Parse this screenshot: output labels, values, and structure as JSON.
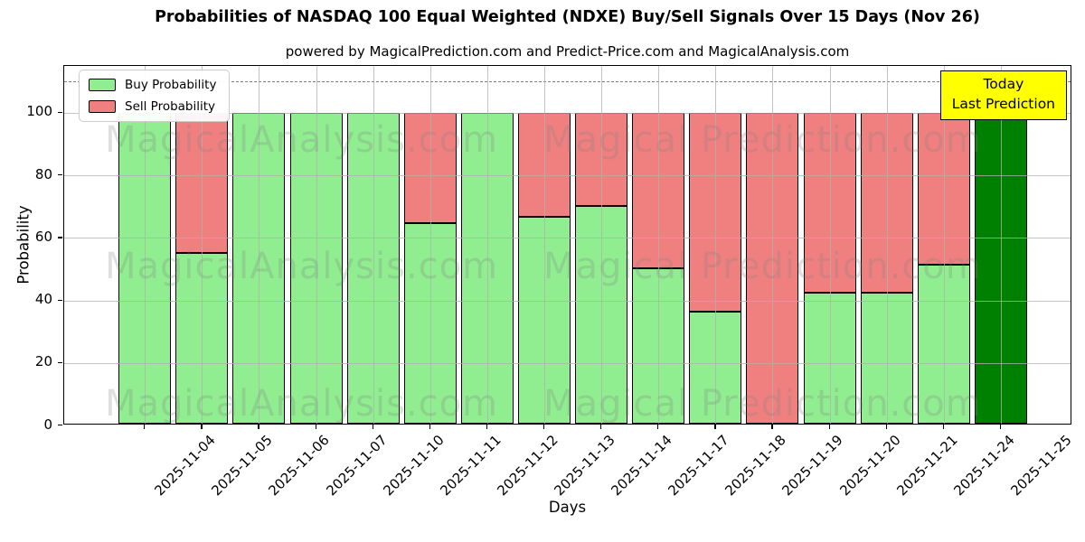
{
  "title": "Probabilities of NASDAQ 100 Equal Weighted (NDXE) Buy/Sell Signals Over 15 Days (Nov 26)",
  "subtitle": "powered by MagicalPrediction.com and Predict-Price.com and MagicalAnalysis.com",
  "axes": {
    "xlabel": "Days",
    "ylabel": "Probability",
    "yticks": [
      0,
      20,
      40,
      60,
      80,
      100
    ],
    "ylim": [
      0,
      115
    ]
  },
  "legend": {
    "items": [
      {
        "label": "Buy Probability",
        "color": "#90EE90"
      },
      {
        "label": "Sell Probability",
        "color": "#F08080"
      }
    ]
  },
  "annotation": {
    "line1": "Today",
    "line2": "Last Prediction",
    "bg_color": "#ffff00"
  },
  "watermarks": {
    "left_text": "MagicalAnalysis.com",
    "right_text": "Magical Prediction.com"
  },
  "colors": {
    "buy": "#90EE90",
    "sell": "#F08080",
    "today_bar": "#008000",
    "grid": "#b0b0b0",
    "dashed": "#7f7f7f",
    "edge": "#000000"
  },
  "chart_data": {
    "type": "bar",
    "stacked": true,
    "title": "Probabilities of NASDAQ 100 Equal Weighted (NDXE) Buy/Sell Signals Over 15 Days (Nov 26)",
    "xlabel": "Days",
    "ylabel": "Probability",
    "ylim": [
      0,
      115
    ],
    "yticks": [
      0,
      20,
      40,
      60,
      80,
      100
    ],
    "grid": true,
    "legend_position": "upper left",
    "dashed_line_y": 110,
    "categories": [
      "2025-11-04",
      "2025-11-05",
      "2025-11-06",
      "2025-11-07",
      "2025-11-10",
      "2025-11-11",
      "2025-11-12",
      "2025-11-13",
      "2025-11-14",
      "2025-11-17",
      "2025-11-18",
      "2025-11-19",
      "2025-11-20",
      "2025-11-21",
      "2025-11-24",
      "2025-11-25"
    ],
    "series": [
      {
        "name": "Buy Probability",
        "color": "#90EE90",
        "values": [
          100,
          55,
          100,
          100,
          100,
          64.5,
          100,
          66.5,
          70,
          50,
          36,
          0,
          42,
          42,
          51,
          100
        ]
      },
      {
        "name": "Sell Probability",
        "color": "#F08080",
        "values": [
          0,
          45,
          0,
          0,
          0,
          35.5,
          0,
          33.5,
          30,
          50,
          64,
          100,
          58,
          58,
          49,
          0
        ]
      }
    ],
    "today_bar": {
      "index": 15,
      "color": "#008000",
      "note": "Today Last Prediction"
    }
  }
}
